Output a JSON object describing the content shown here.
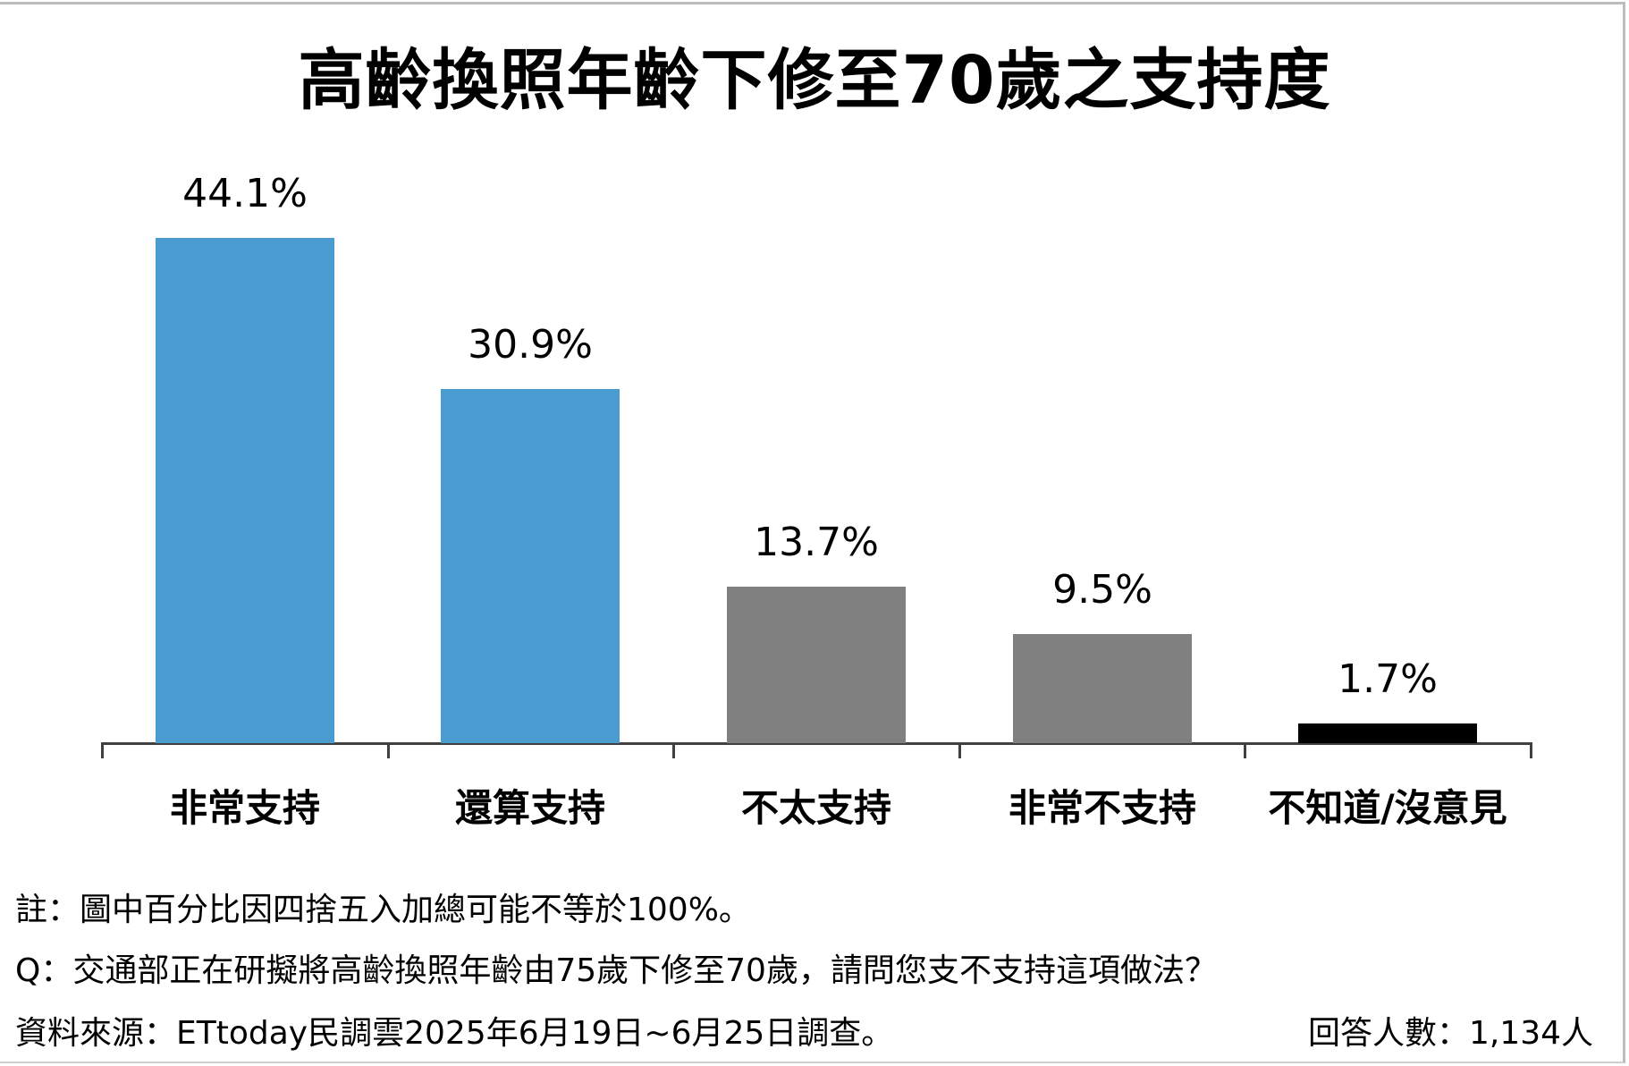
{
  "chart_data": {
    "type": "bar",
    "title": "高齡換照年齡下修至70歲之支持度",
    "categories": [
      "非常支持",
      "還算支持",
      "不太支持",
      "非常不支持",
      "不知道/沒意見"
    ],
    "values": [
      44.1,
      30.9,
      13.7,
      9.5,
      1.7
    ],
    "value_labels": [
      "44.1%",
      "30.9%",
      "13.7%",
      "9.5%",
      "1.7%"
    ],
    "colors": [
      "#4a9cd0",
      "#4a9cd0",
      "#808080",
      "#808080",
      "#000000"
    ],
    "xlabel": "",
    "ylabel": "",
    "unit": "%",
    "grid": false,
    "legend": "none",
    "y_axis_visible": false
  },
  "footnotes": {
    "note": "註：圖中百分比因四捨五入加總可能不等於100%。",
    "question": "Q：交通部正在研擬將高齡換照年齡由75歲下修至70歲，請問您支不支持這項做法？",
    "source": "資料來源：ETtoday民調雲2025年6月19日~6月25日調查。",
    "respondents": "回答人數：1,134人"
  }
}
